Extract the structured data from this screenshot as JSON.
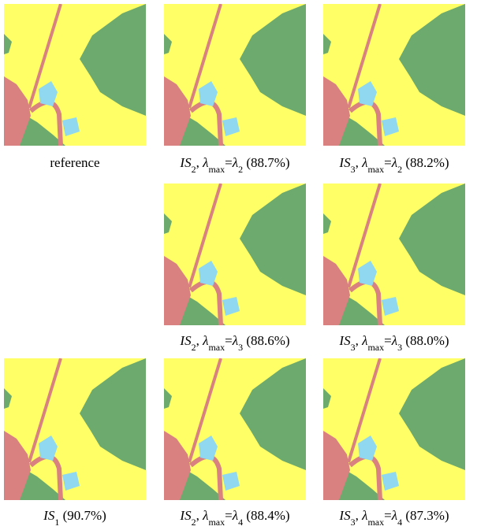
{
  "figure": {
    "panels": [
      {
        "caption": [
          {
            "text": "reference",
            "style": "regular"
          }
        ]
      },
      {
        "caption": [
          {
            "text": "IS",
            "style": "italic"
          },
          {
            "text": "2",
            "style": "subscript"
          },
          {
            "text": ", ",
            "style": "regular"
          },
          {
            "text": "λ",
            "style": "italic"
          },
          {
            "text": "max",
            "style": "subscript"
          },
          {
            "text": "=",
            "style": "regular"
          },
          {
            "text": "λ",
            "style": "italic"
          },
          {
            "text": "2",
            "style": "subscript"
          },
          {
            "text": " (88.7%)",
            "style": "regular"
          }
        ]
      },
      {
        "caption": [
          {
            "text": "IS",
            "style": "italic"
          },
          {
            "text": "3",
            "style": "subscript"
          },
          {
            "text": ", ",
            "style": "regular"
          },
          {
            "text": "λ",
            "style": "italic"
          },
          {
            "text": "max",
            "style": "subscript"
          },
          {
            "text": "=",
            "style": "regular"
          },
          {
            "text": "λ",
            "style": "italic"
          },
          {
            "text": "2",
            "style": "subscript"
          },
          {
            "text": " (88.2%)",
            "style": "regular"
          }
        ]
      },
      {
        "caption": [
          {
            "text": "IS",
            "style": "italic"
          },
          {
            "text": "2",
            "style": "subscript"
          },
          {
            "text": ", ",
            "style": "regular"
          },
          {
            "text": "λ",
            "style": "italic"
          },
          {
            "text": "max",
            "style": "subscript"
          },
          {
            "text": "=",
            "style": "regular"
          },
          {
            "text": "λ",
            "style": "italic"
          },
          {
            "text": "3",
            "style": "subscript"
          },
          {
            "text": " (88.6%)",
            "style": "regular"
          }
        ]
      },
      {
        "caption": [
          {
            "text": "IS",
            "style": "italic"
          },
          {
            "text": "3",
            "style": "subscript"
          },
          {
            "text": ", ",
            "style": "regular"
          },
          {
            "text": "λ",
            "style": "italic"
          },
          {
            "text": "max",
            "style": "subscript"
          },
          {
            "text": "=",
            "style": "regular"
          },
          {
            "text": "λ",
            "style": "italic"
          },
          {
            "text": "3",
            "style": "subscript"
          },
          {
            "text": " (88.0%)",
            "style": "regular"
          }
        ]
      },
      {
        "caption": [
          {
            "text": "IS",
            "style": "italic"
          },
          {
            "text": "1",
            "style": "subscript"
          },
          {
            "text": " (90.7%)",
            "style": "regular"
          }
        ]
      },
      {
        "caption": [
          {
            "text": "IS",
            "style": "italic"
          },
          {
            "text": "2",
            "style": "subscript"
          },
          {
            "text": ", ",
            "style": "regular"
          },
          {
            "text": "λ",
            "style": "italic"
          },
          {
            "text": "max",
            "style": "subscript"
          },
          {
            "text": "=",
            "style": "regular"
          },
          {
            "text": "λ",
            "style": "italic"
          },
          {
            "text": "4",
            "style": "subscript"
          },
          {
            "text": " (88.4%)",
            "style": "regular"
          }
        ]
      },
      {
        "caption": [
          {
            "text": "IS",
            "style": "italic"
          },
          {
            "text": "3",
            "style": "subscript"
          },
          {
            "text": ", ",
            "style": "regular"
          },
          {
            "text": "λ",
            "style": "italic"
          },
          {
            "text": "max",
            "style": "subscript"
          },
          {
            "text": "=",
            "style": "regular"
          },
          {
            "text": "λ",
            "style": "italic"
          },
          {
            "text": "4",
            "style": "subscript"
          },
          {
            "text": " (87.3%)",
            "style": "regular"
          }
        ]
      }
    ]
  }
}
